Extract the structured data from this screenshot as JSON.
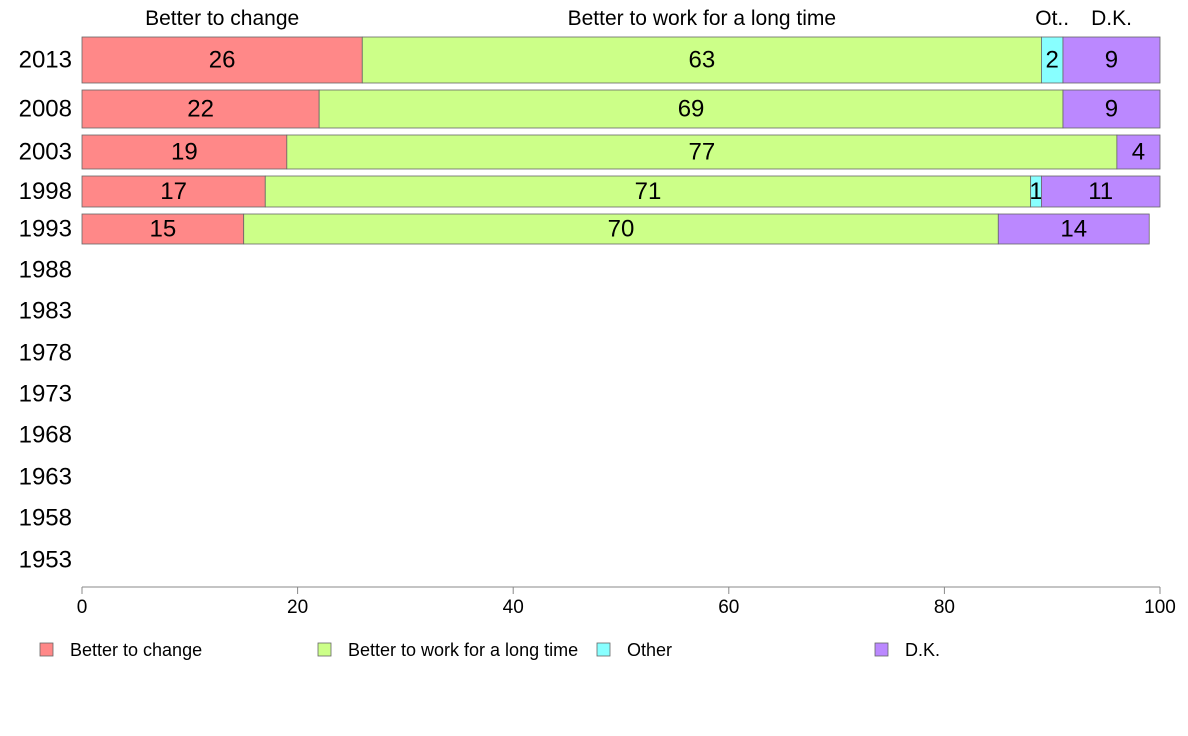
{
  "chart_data": {
    "type": "bar",
    "orientation": "horizontal",
    "stacked": true,
    "categories": [
      "2013",
      "2008",
      "2003",
      "1998",
      "1993",
      "1988",
      "1983",
      "1978",
      "1973",
      "1968",
      "1963",
      "1958",
      "1953"
    ],
    "series": [
      {
        "name": "Better to change",
        "color": "#ff8888",
        "values": [
          26,
          22,
          19,
          17,
          15,
          null,
          null,
          null,
          null,
          null,
          null,
          null,
          null
        ]
      },
      {
        "name": "Better to work for a long time",
        "color": "#ccff88",
        "values": [
          63,
          69,
          77,
          71,
          70,
          null,
          null,
          null,
          null,
          null,
          null,
          null,
          null
        ]
      },
      {
        "name": "Other",
        "color": "#88ffff",
        "values": [
          2,
          0,
          0,
          1,
          0,
          null,
          null,
          null,
          null,
          null,
          null,
          null,
          null
        ]
      },
      {
        "name": "D.K.",
        "color": "#bb88ff",
        "values": [
          9,
          9,
          4,
          11,
          14,
          null,
          null,
          null,
          null,
          null,
          null,
          null,
          null
        ]
      }
    ],
    "top_labels": [
      "Better to change",
      "Better to work for a long time",
      "Ot..",
      "D.K."
    ],
    "xlim": [
      0,
      100
    ],
    "xticks": [
      0,
      20,
      40,
      60,
      80,
      100
    ],
    "grid": false,
    "legend_position": "bottom",
    "title": "",
    "xlabel": "",
    "ylabel": ""
  }
}
